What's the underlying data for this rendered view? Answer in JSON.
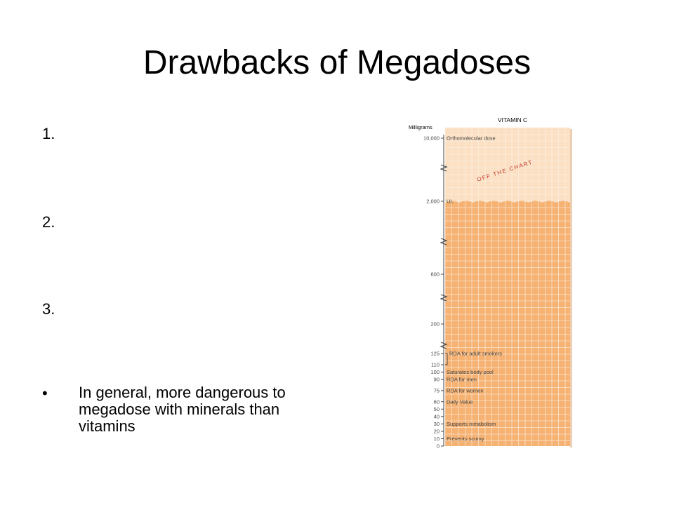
{
  "slide": {
    "title": "Drawbacks of Megadoses",
    "list_items": [
      "1.",
      "2.",
      "3."
    ],
    "bullet_symbol": "•",
    "bullet_text": "In general, more dangerous to megadose with minerals than vitamins"
  },
  "chart_data": {
    "type": "table",
    "title": "VITAMIN C",
    "ylabel": "Milligrams",
    "ylim": [
      0,
      10000
    ],
    "y_scale": "broken",
    "banner": "OFF THE CHART",
    "ticks": [
      "0",
      "10",
      "20",
      "30",
      "40",
      "50",
      "60",
      "75",
      "90",
      "100",
      "110",
      "125",
      "200",
      "600",
      "2,000",
      "10,000"
    ],
    "levels": [
      {
        "value": 10000,
        "tick": "10,000",
        "label": "Orthomolecular dose"
      },
      {
        "value": 2000,
        "tick": "2,000",
        "label": "UL"
      },
      {
        "value": 125,
        "tick": "125",
        "label": "RDA for adult smokers"
      },
      {
        "value": 100,
        "tick": "100",
        "label": "Saturates body pool"
      },
      {
        "value": 90,
        "tick": "90",
        "label": "RDA for men"
      },
      {
        "value": 75,
        "tick": "75",
        "label": "RDA for women"
      },
      {
        "value": 60,
        "tick": "60",
        "label": "Daily Value"
      },
      {
        "value": 30,
        "tick": "30",
        "label": "Supports metabolism"
      },
      {
        "value": 10,
        "tick": "10",
        "label": "Prevents scurvy"
      }
    ],
    "colors": {
      "above_ul": "#fbe0c4",
      "below_ul": "#f6b273",
      "grid": "#fdf1e4",
      "banner": "#c0392b",
      "text": "#444444"
    }
  }
}
